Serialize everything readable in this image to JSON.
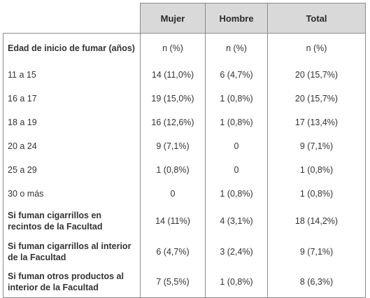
{
  "table": {
    "headers": [
      "",
      "Mujer",
      "Hombre",
      "Total"
    ],
    "rows": [
      {
        "label": "Edad de inicio de fumar (años)",
        "mujer": "n (%)",
        "hombre": "n (%)",
        "total": "n (%)"
      },
      {
        "label": "11 a 15",
        "mujer": "14 (11,0%)",
        "hombre": "6 (4,7%)",
        "total": "20 (15,7%)"
      },
      {
        "label": "16 a 17",
        "mujer": "19 (15,0%)",
        "hombre": "1 (0,8%)",
        "total": "20 (15,7%)"
      },
      {
        "label": "18 a 19",
        "mujer": "16 (12,6%)",
        "hombre": "1 (0,8%)",
        "total": "17 (13,4%)"
      },
      {
        "label": "20 a 24",
        "mujer": "9 (7,1%)",
        "hombre": "0",
        "total": "9 (7,1%)"
      },
      {
        "label": "25 a 29",
        "mujer": "1 (0,8%)",
        "hombre": "0",
        "total": "1 (0,8%)"
      },
      {
        "label": "30 o más",
        "mujer": "0",
        "hombre": "1 (0,8%)",
        "total": "1 (0,8%)"
      },
      {
        "label": "Si fuman cigarrillos en recintos de la Facultad",
        "mujer": "14 (11%)",
        "hombre": "4 (3,1%)",
        "total": "18 (14,2%)"
      },
      {
        "label": "Si fuman cigarrillos al interior de la Facultad",
        "mujer": "6 (4,7%)",
        "hombre": "3 (2,4%)",
        "total": "9 (7,1%)"
      },
      {
        "label": "Si fuman otros productos al interior de la Facultad",
        "mujer": "7 (5,5%)",
        "hombre": "1 (0,8%)",
        "total": "8 (6,3%)"
      }
    ]
  }
}
